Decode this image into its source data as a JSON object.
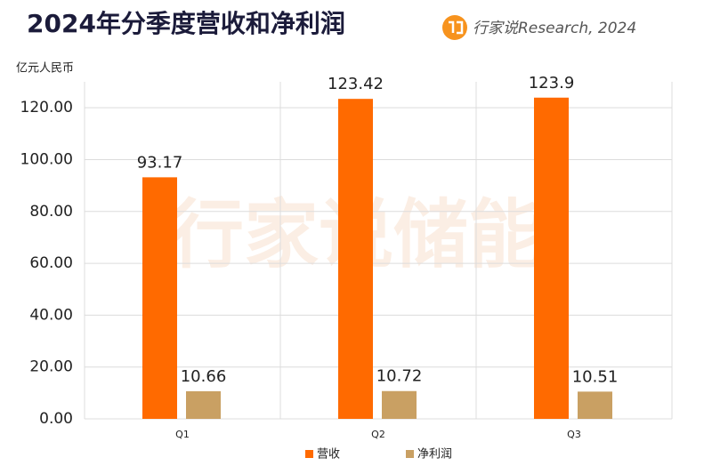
{
  "chart_data": {
    "type": "bar",
    "title": "2024年分季度营收和净利润",
    "source": "行家说Research, 2024",
    "watermark": "行家说储能",
    "y_label": "亿元人民币",
    "categories": [
      "Q1",
      "Q2",
      "Q3"
    ],
    "series": [
      {
        "name": "营收",
        "color": "#ff6a00",
        "values": [
          93.17,
          123.42,
          123.9
        ]
      },
      {
        "name": "净利润",
        "color": "#c9a063",
        "values": [
          10.66,
          10.72,
          10.51
        ]
      }
    ],
    "ylim": [
      0,
      130
    ],
    "yticks": [
      {
        "value": 0,
        "label": "0.00"
      },
      {
        "value": 20,
        "label": "20.00"
      },
      {
        "value": 40,
        "label": "40.00"
      },
      {
        "value": 60,
        "label": "60.00"
      },
      {
        "value": 80,
        "label": "80.00"
      },
      {
        "value": 100,
        "label": "100.00"
      },
      {
        "value": 120,
        "label": "120.00"
      }
    ],
    "grid": true,
    "legend": "bottom"
  }
}
